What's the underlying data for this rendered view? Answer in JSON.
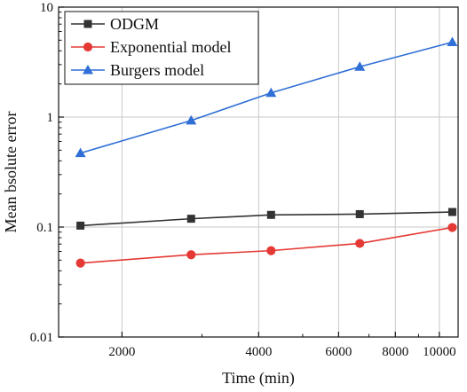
{
  "chart_data": {
    "type": "line",
    "xlabel": "Time (min)",
    "ylabel": "Mean bsolute error",
    "x_scale": "log",
    "y_scale": "log",
    "xlim": [
      1450,
      11000
    ],
    "ylim": [
      0.01,
      10
    ],
    "x_ticks": [
      2000,
      4000,
      6000,
      8000,
      10000
    ],
    "x_tick_labels": [
      "2000",
      "4000",
      "6000",
      "8000",
      "10000"
    ],
    "y_ticks": [
      0.01,
      0.1,
      1,
      10
    ],
    "y_tick_labels": [
      "0.01",
      "0.1",
      "1",
      "10"
    ],
    "grid": true,
    "legend_position": "top-left",
    "series": [
      {
        "name": "ODGM",
        "color": "#333333",
        "marker": "square",
        "x": [
          1620,
          2840,
          4260,
          6680,
          10680
        ],
        "y": [
          0.103,
          0.119,
          0.129,
          0.131,
          0.137
        ]
      },
      {
        "name": "Exponential model",
        "color": "#e53935",
        "marker": "circle",
        "x": [
          1620,
          2840,
          4260,
          6680,
          10680
        ],
        "y": [
          0.047,
          0.056,
          0.061,
          0.071,
          0.099
        ]
      },
      {
        "name": "Burgers model",
        "color": "#2f6fd6",
        "marker": "triangle",
        "x": [
          1620,
          2840,
          4260,
          6680,
          10680
        ],
        "y": [
          0.47,
          0.93,
          1.66,
          2.87,
          4.8
        ]
      }
    ]
  }
}
